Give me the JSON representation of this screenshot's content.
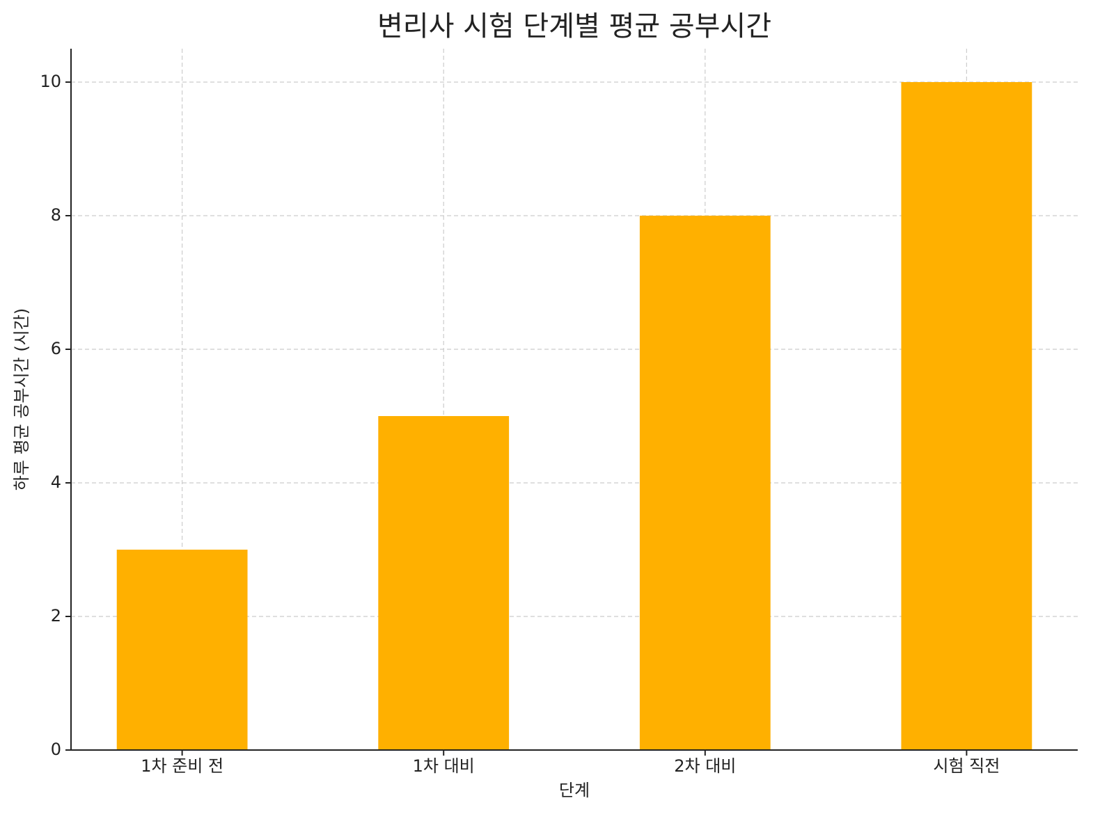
{
  "chart_data": {
    "type": "bar",
    "title": "변리사 시험 단계별 평균 공부시간",
    "x_label": "단계",
    "y_label": "하루 평균 공부시간 (시간)",
    "categories": [
      "1차 준비 전",
      "1차 대비",
      "2차 대비",
      "시험 직전"
    ],
    "values": [
      3,
      5,
      8,
      10
    ],
    "color": "#ffb000",
    "ylim": [
      0,
      10.5
    ],
    "yticks": [
      0,
      2,
      4,
      6,
      8,
      10
    ],
    "grid": true
  }
}
